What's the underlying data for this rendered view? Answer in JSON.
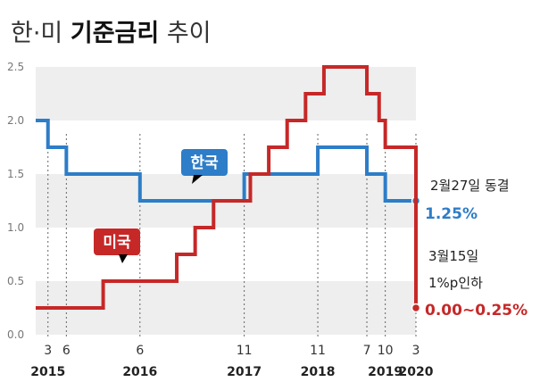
{
  "title": {
    "prefix": "한·미 ",
    "bold": "기준금리",
    "suffix": " 추이"
  },
  "colors": {
    "korea": "#2d7dc8",
    "us": "#c62828",
    "band": "#eeeeee",
    "guide": "#666666"
  },
  "chart_data": {
    "type": "line",
    "title": "한·미 기준금리 추이",
    "xlabel": "",
    "ylabel": "",
    "ylim": [
      0,
      2.5
    ],
    "xlim": [
      "2015-01",
      "2020-03"
    ],
    "yticks": [
      "0.0",
      "0.5",
      "1.0",
      "1.5",
      "2.0",
      "2.5"
    ],
    "grid": "alternating bands",
    "x_ticks": [
      {
        "date": "2015-03",
        "month": "3",
        "year": "2015"
      },
      {
        "date": "2015-06",
        "month": "6"
      },
      {
        "date": "2016-06",
        "month": "6",
        "year": "2016"
      },
      {
        "date": "2017-11",
        "month": "11",
        "year": "2017"
      },
      {
        "date": "2018-11",
        "month": "11",
        "year": "2018"
      },
      {
        "date": "2019-07",
        "month": "7"
      },
      {
        "date": "2019-10",
        "month": "10",
        "year": "2019"
      },
      {
        "date": "2020-03",
        "month": "3",
        "year": "2020"
      }
    ],
    "series": [
      {
        "name": "한국",
        "color": "#2d7dc8",
        "steps": [
          {
            "date": "2015-01",
            "value": 2.0
          },
          {
            "date": "2015-03",
            "value": 1.75
          },
          {
            "date": "2015-06",
            "value": 1.5
          },
          {
            "date": "2016-06",
            "value": 1.25
          },
          {
            "date": "2017-11",
            "value": 1.5
          },
          {
            "date": "2018-11",
            "value": 1.75
          },
          {
            "date": "2019-07",
            "value": 1.5
          },
          {
            "date": "2019-10",
            "value": 1.25
          },
          {
            "date": "2020-03",
            "value": 1.25
          }
        ]
      },
      {
        "name": "미국",
        "color": "#c62828",
        "steps": [
          {
            "date": "2015-01",
            "value": 0.25
          },
          {
            "date": "2015-12",
            "value": 0.5
          },
          {
            "date": "2016-12",
            "value": 0.75
          },
          {
            "date": "2017-03",
            "value": 1.0
          },
          {
            "date": "2017-06",
            "value": 1.25
          },
          {
            "date": "2017-12",
            "value": 1.5
          },
          {
            "date": "2018-03",
            "value": 1.75
          },
          {
            "date": "2018-06",
            "value": 2.0
          },
          {
            "date": "2018-09",
            "value": 2.25
          },
          {
            "date": "2018-12",
            "value": 2.5
          },
          {
            "date": "2019-07",
            "value": 2.25
          },
          {
            "date": "2019-09",
            "value": 2.0
          },
          {
            "date": "2019-10",
            "value": 1.75
          },
          {
            "date": "2020-03",
            "value": 0.25
          }
        ]
      }
    ],
    "annotations": {
      "korea_note": "2월27일 동결",
      "korea_value": "1.25%",
      "us_note_1": "3월15일",
      "us_note_2": "1%p인하",
      "us_value": "0.00~0.25%"
    }
  }
}
